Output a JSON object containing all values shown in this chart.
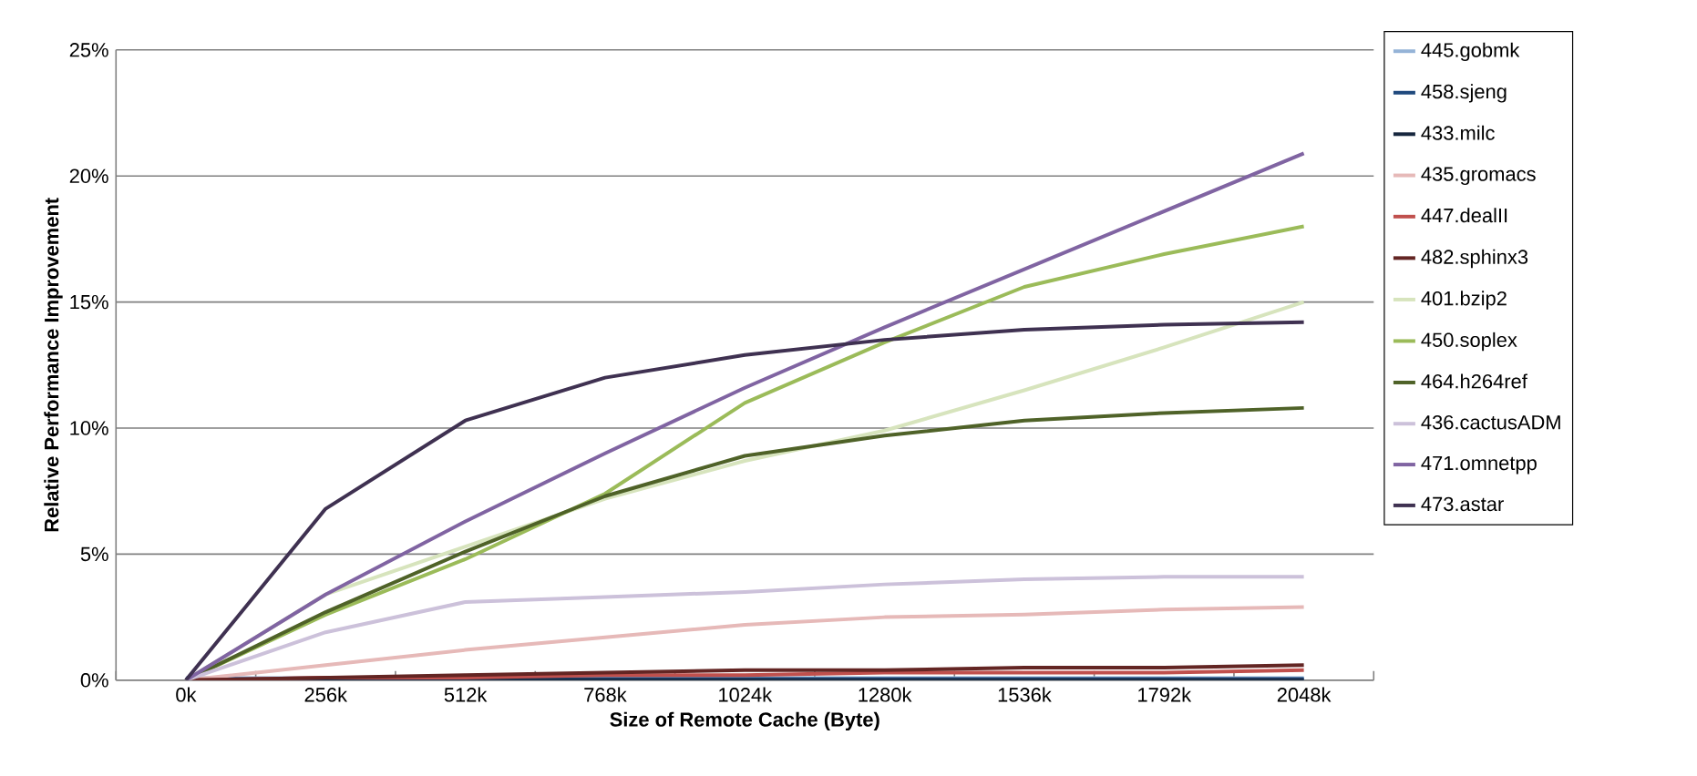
{
  "chart_data": {
    "type": "line",
    "xlabel": "Size of Remote Cache (Byte)",
    "ylabel": "Relative Performance Improvement",
    "categories": [
      "0k",
      "256k",
      "512k",
      "768k",
      "1024k",
      "1280k",
      "1536k",
      "1792k",
      "2048k"
    ],
    "ylim": [
      0,
      25
    ],
    "yticks": [
      {
        "value": 0,
        "label": "0%"
      },
      {
        "value": 5,
        "label": "5%"
      },
      {
        "value": 10,
        "label": "10%"
      },
      {
        "value": 15,
        "label": "15%"
      },
      {
        "value": 20,
        "label": "20%"
      },
      {
        "value": 25,
        "label": "25%"
      }
    ],
    "grid": "y",
    "legend": "right",
    "marker": "none",
    "series": [
      {
        "name": "445.gobmk",
        "color": "#95b3d7",
        "values": [
          0,
          0,
          0,
          0,
          0,
          0,
          0,
          0,
          0
        ]
      },
      {
        "name": "458.sjeng",
        "color": "#1f497d",
        "values": [
          0,
          0,
          0,
          0,
          0,
          0,
          0,
          0,
          0
        ]
      },
      {
        "name": "433.milc",
        "color": "#17273e",
        "values": [
          0,
          0,
          0,
          0,
          0,
          0,
          0,
          0,
          0
        ]
      },
      {
        "name": "435.gromacs",
        "color": "#e6b9b8",
        "values": [
          0,
          0.6,
          1.2,
          1.7,
          2.2,
          2.5,
          2.6,
          2.8,
          2.9
        ]
      },
      {
        "name": "447.dealII",
        "color": "#c0504d",
        "values": [
          0,
          0.1,
          0.1,
          0.2,
          0.2,
          0.3,
          0.3,
          0.3,
          0.4
        ]
      },
      {
        "name": "482.sphinx3",
        "color": "#632523",
        "values": [
          0,
          0.1,
          0.2,
          0.3,
          0.4,
          0.4,
          0.5,
          0.5,
          0.6
        ]
      },
      {
        "name": "401.bzip2",
        "color": "#d7e4bd",
        "values": [
          0,
          3.4,
          5.3,
          7.2,
          8.7,
          9.9,
          11.5,
          13.2,
          15.0
        ]
      },
      {
        "name": "450.soplex",
        "color": "#9bbb59",
        "values": [
          0,
          2.6,
          4.8,
          7.4,
          11.0,
          13.4,
          15.6,
          16.9,
          18.0
        ]
      },
      {
        "name": "464.h264ref",
        "color": "#4f6228",
        "values": [
          0,
          2.7,
          5.1,
          7.3,
          8.9,
          9.7,
          10.3,
          10.6,
          10.8
        ]
      },
      {
        "name": "436.cactusADM",
        "color": "#ccc1da",
        "values": [
          0,
          1.9,
          3.1,
          3.3,
          3.5,
          3.8,
          4.0,
          4.1,
          4.1
        ]
      },
      {
        "name": "471.omnetpp",
        "color": "#8064a2",
        "values": [
          0,
          3.4,
          6.3,
          9.0,
          11.6,
          14.0,
          16.3,
          18.6,
          20.9
        ]
      },
      {
        "name": "473.astar",
        "color": "#3f3151",
        "values": [
          0,
          6.8,
          10.3,
          12.0,
          12.9,
          13.5,
          13.9,
          14.1,
          14.2
        ]
      }
    ]
  }
}
